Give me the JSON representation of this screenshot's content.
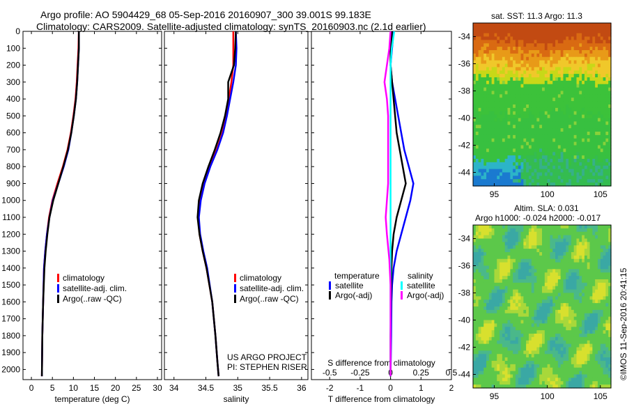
{
  "header": {
    "line1": "Argo profile: AO 5904429_68 05-Sep-2016 20160907_300 39.001S 99.183E",
    "line2": "Climatology: CARS2009. Satellite-adjusted climatology: synTS_20160903.nc (2.1d earlier)"
  },
  "side_label": "©IMOS 11-Sep-2016 20:41:15",
  "credit": {
    "line1": "US ARGO PROJECT",
    "line2": "PI: STEPHEN RISER"
  },
  "colors": {
    "climatology": "#ff0000",
    "satellite": "#0000ff",
    "argo": "#000000",
    "sal_satellite": "#00ffff",
    "sal_argo": "#ff00ff"
  },
  "map_titles": {
    "sst": "sat. SST: 11.3 Argo: 11.3",
    "sla1": "Altim. SLA: 0.031",
    "sla2": "Argo h1000: -0.024 h2000: -0.017"
  },
  "chart_data": [
    {
      "type": "line",
      "xlabel": "temperature (deg C)",
      "ylabel": "",
      "xlim": [
        -2,
        31
      ],
      "ylim": [
        2060,
        0
      ],
      "xticks": [
        "0",
        "5",
        "10",
        "15",
        "20",
        "25",
        "30"
      ],
      "yticks": [
        "0",
        "100",
        "200",
        "300",
        "400",
        "500",
        "600",
        "700",
        "800",
        "900",
        "1000",
        "1100",
        "1200",
        "1300",
        "1400",
        "1500",
        "1600",
        "1700",
        "1800",
        "1900",
        "2000"
      ],
      "legend": [
        "climatology",
        "satellite-adj. clim.",
        "Argo(..raw -QC)"
      ],
      "legend_position": "lower-center",
      "series": [
        {
          "name": "climatology",
          "x": [
            11.3,
            11.2,
            11.0,
            10.8,
            10.5,
            10.0,
            9.4,
            8.6,
            7.5,
            6.2,
            5.0,
            4.2,
            3.7,
            3.3,
            3.0,
            2.8,
            2.6,
            2.5
          ],
          "y": [
            0,
            100,
            200,
            300,
            400,
            500,
            600,
            700,
            800,
            900,
            1000,
            1100,
            1200,
            1300,
            1400,
            1600,
            1800,
            2040
          ]
        },
        {
          "name": "satellite-adj. clim.",
          "x": [
            11.3,
            11.3,
            11.1,
            10.9,
            10.6,
            10.1,
            9.5,
            8.8,
            7.7,
            6.4,
            5.1,
            4.3,
            3.7,
            3.3,
            3.0,
            2.8,
            2.6,
            2.5
          ],
          "y": [
            0,
            100,
            200,
            300,
            400,
            500,
            600,
            700,
            800,
            900,
            1000,
            1100,
            1200,
            1300,
            1400,
            1600,
            1800,
            2040
          ]
        },
        {
          "name": "Argo(..raw -QC)",
          "x": [
            11.3,
            11.3,
            11.1,
            10.9,
            10.6,
            10.1,
            9.5,
            8.7,
            7.6,
            6.4,
            5.2,
            4.3,
            3.8,
            3.4,
            3.1,
            2.8,
            2.6,
            2.5
          ],
          "y": [
            0,
            100,
            200,
            300,
            400,
            500,
            600,
            700,
            800,
            900,
            1000,
            1100,
            1200,
            1300,
            1400,
            1600,
            1800,
            2040
          ]
        }
      ]
    },
    {
      "type": "line",
      "xlabel": "salinity",
      "ylabel": "",
      "xlim": [
        33.85,
        36.1
      ],
      "ylim": [
        2060,
        0
      ],
      "xticks": [
        "34",
        "34.5",
        "35",
        "35.5",
        "36"
      ],
      "legend": [
        "climatology",
        "satellite-adj. clim.",
        "Argo(..raw -QC)"
      ],
      "legend_position": "lower-right",
      "series": [
        {
          "name": "climatology",
          "x": [
            34.93,
            34.93,
            34.93,
            34.9,
            34.86,
            34.82,
            34.76,
            34.67,
            34.56,
            34.47,
            34.41,
            34.38,
            34.4,
            34.45,
            34.51,
            34.6,
            34.65,
            34.68,
            34.7
          ],
          "y": [
            0,
            100,
            200,
            300,
            400,
            500,
            600,
            700,
            800,
            900,
            1000,
            1100,
            1200,
            1300,
            1400,
            1600,
            1800,
            1950,
            2040
          ]
        },
        {
          "name": "satellite-adj. clim.",
          "x": [
            34.97,
            34.98,
            34.97,
            34.93,
            34.88,
            34.83,
            34.77,
            34.68,
            34.57,
            34.48,
            34.42,
            34.39,
            34.41,
            34.46,
            34.52,
            34.6,
            34.65,
            34.68,
            34.7
          ],
          "y": [
            0,
            100,
            200,
            300,
            400,
            500,
            600,
            700,
            800,
            900,
            1000,
            1100,
            1200,
            1300,
            1400,
            1600,
            1800,
            1950,
            2040
          ]
        },
        {
          "name": "Argo(..raw -QC)",
          "x": [
            34.97,
            34.96,
            34.94,
            34.85,
            34.85,
            34.8,
            34.73,
            34.64,
            34.54,
            34.45,
            34.39,
            34.37,
            34.4,
            34.45,
            34.51,
            34.6,
            34.65,
            34.68,
            34.7
          ],
          "y": [
            0,
            100,
            200,
            300,
            400,
            500,
            600,
            700,
            800,
            900,
            1000,
            1100,
            1200,
            1300,
            1400,
            1600,
            1800,
            1950,
            2040
          ]
        }
      ]
    },
    {
      "type": "line",
      "xlabel": "T difference from climatology",
      "secondary_xlabel": "S difference from climatology",
      "xlim": [
        -2.6,
        2.0
      ],
      "ylim": [
        2060,
        0
      ],
      "xticks": [
        "-2",
        "-1",
        "0",
        "1",
        "2"
      ],
      "secondary_xticks": [
        "-0.5",
        "-0.25",
        "0",
        "0.25",
        "0.5"
      ],
      "legend_headers": [
        "temperature",
        "salinity"
      ],
      "legend": [
        "satellite",
        "Argo(-adj)",
        "satellite",
        "Argo(-adj)"
      ],
      "legend_position": "lower-center",
      "series": [
        {
          "name": "satellite",
          "quantity": "temperature",
          "x": [
            0.1,
            0.05,
            0.0,
            0.05,
            0.15,
            0.25,
            0.35,
            0.45,
            0.6,
            0.75,
            0.65,
            0.5,
            0.35,
            0.2,
            0.1,
            0.05,
            0.03,
            0.02,
            0.0
          ],
          "y": [
            0,
            100,
            200,
            300,
            400,
            500,
            600,
            700,
            800,
            900,
            1000,
            1100,
            1200,
            1300,
            1400,
            1500,
            1600,
            1800,
            2040
          ]
        },
        {
          "name": "Argo(-adj)",
          "quantity": "temperature",
          "x": [
            0.05,
            0.0,
            0.0,
            0.05,
            0.1,
            0.15,
            0.2,
            0.3,
            0.4,
            0.5,
            0.35,
            0.2,
            0.1,
            0.05,
            0.03,
            0.02,
            0.01,
            0.0,
            0.0
          ],
          "y": [
            0,
            100,
            200,
            300,
            400,
            500,
            600,
            700,
            800,
            900,
            1000,
            1100,
            1200,
            1300,
            1400,
            1500,
            1600,
            1800,
            2040
          ]
        },
        {
          "name": "satellite",
          "quantity": "salinity",
          "x": [
            0.03,
            0.01,
            0.0,
            0.0,
            0.0,
            0.0,
            0.0,
            0.0,
            0.0,
            0.0,
            0.0,
            0.0,
            0.0,
            0.0,
            0.0,
            0.0,
            0.0,
            0.0
          ],
          "y": [
            0,
            100,
            200,
            300,
            400,
            500,
            600,
            700,
            800,
            900,
            1000,
            1100,
            1200,
            1400,
            1600,
            1800,
            1950,
            2040
          ]
        },
        {
          "name": "Argo(-adj)",
          "quantity": "salinity",
          "x": [
            0.0,
            -0.01,
            -0.03,
            -0.05,
            -0.03,
            -0.02,
            -0.02,
            -0.02,
            -0.02,
            -0.02,
            -0.03,
            -0.04,
            -0.03,
            -0.01,
            0.0,
            0.0
          ],
          "y": [
            0,
            100,
            200,
            300,
            400,
            500,
            600,
            700,
            800,
            900,
            1000,
            1100,
            1200,
            1350,
            1500,
            2040
          ]
        }
      ]
    },
    {
      "type": "heatmap",
      "title": "sat. SST: 11.3 Argo: 11.3",
      "xlim": [
        93,
        106
      ],
      "ylim": [
        -45,
        -33
      ],
      "xticks": [
        "95",
        "100",
        "105"
      ],
      "yticks": [
        "-34",
        "-36",
        "-38",
        "-40",
        "-42",
        "-44"
      ],
      "note": "SST field: warm (red/orange) north, yellow band, green middle, cyan/blue south-west"
    },
    {
      "type": "heatmap",
      "title": "Altim. SLA: 0.031",
      "subtitle": "Argo h1000: -0.024 h2000: -0.017",
      "xlim": [
        93,
        106
      ],
      "ylim": [
        -45,
        -33
      ],
      "xticks": [
        "95",
        "100",
        "105"
      ],
      "yticks": [
        "-34",
        "-36",
        "-38",
        "-40",
        "-42",
        "-44"
      ],
      "note": "SLA field: mostly green with cyan and yellow eddy patches"
    }
  ]
}
